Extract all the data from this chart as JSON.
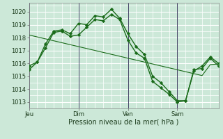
{
  "bg_color": "#cce8d8",
  "grid_color": "#ffffff",
  "line_color": "#1a6b1a",
  "marker_color": "#1a6b1a",
  "xlabel": "Pression niveau de la mer( hPa )",
  "xtick_labels": [
    "Jeu",
    "Dim",
    "Ven",
    "Sam"
  ],
  "xtick_positions": [
    0,
    6,
    12,
    18
  ],
  "ylim": [
    1012.5,
    1020.7
  ],
  "yticks": [
    1013,
    1014,
    1015,
    1016,
    1017,
    1018,
    1019,
    1020
  ],
  "series1": {
    "x": [
      0,
      1,
      2,
      3,
      4,
      5,
      6,
      7,
      8,
      9,
      10,
      11,
      12,
      13,
      14,
      15,
      16,
      17,
      18,
      19,
      20,
      21,
      22,
      23
    ],
    "y": [
      1015.5,
      1016.1,
      1017.5,
      1018.5,
      1018.6,
      1018.3,
      1019.1,
      1019.0,
      1019.7,
      1019.6,
      1020.2,
      1019.5,
      1018.3,
      1017.3,
      1016.7,
      1015.0,
      1014.5,
      1013.8,
      1013.1,
      1013.1,
      1015.4,
      1015.8,
      1016.5,
      1016.0
    ]
  },
  "series2": {
    "x": [
      0,
      1,
      2,
      3,
      4,
      5,
      6,
      7,
      8,
      9,
      10,
      11,
      12,
      13,
      14,
      15,
      16,
      17,
      18,
      19,
      20,
      21,
      22,
      23
    ],
    "y": [
      1015.8,
      1016.1,
      1017.2,
      1018.4,
      1018.5,
      1018.1,
      1018.2,
      1018.8,
      1019.4,
      1019.3,
      1019.8,
      1019.4,
      1017.8,
      1016.8,
      1016.4,
      1014.6,
      1014.1,
      1013.6,
      1013.0,
      1013.1,
      1015.5,
      1015.6,
      1016.4,
      1015.8
    ]
  },
  "series3": {
    "x": [
      0,
      1,
      2,
      3,
      4,
      5,
      6,
      7,
      8,
      9,
      10,
      11,
      12,
      13,
      14,
      15,
      16,
      17,
      18,
      19,
      20,
      21,
      22,
      23
    ],
    "y": [
      1018.2,
      1018.05,
      1017.9,
      1017.75,
      1017.6,
      1017.45,
      1017.3,
      1017.15,
      1017.0,
      1016.85,
      1016.7,
      1016.55,
      1016.4,
      1016.25,
      1016.1,
      1015.95,
      1015.8,
      1015.65,
      1015.5,
      1015.35,
      1015.2,
      1015.05,
      1015.9,
      1015.95
    ]
  },
  "vline_positions": [
    0,
    6,
    12,
    18
  ],
  "xlim": [
    0,
    23
  ]
}
